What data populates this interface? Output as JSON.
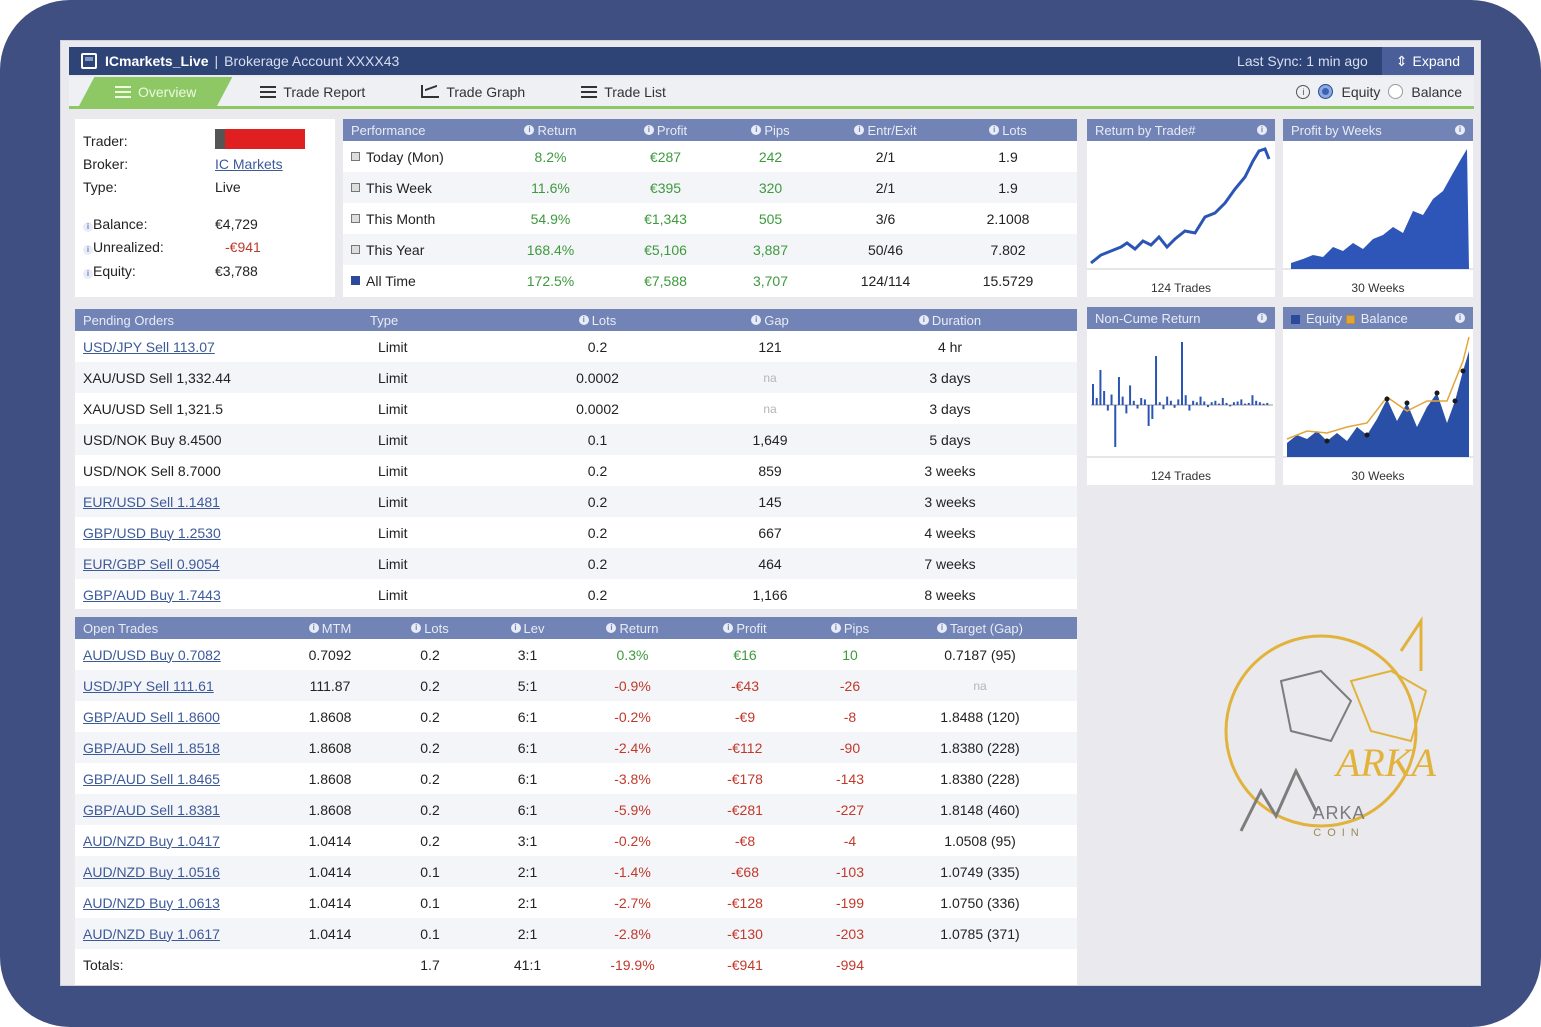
{
  "titlebar": {
    "account": "ICmarkets_Live",
    "separator": "|",
    "description": "Brokerage Account XXXX43",
    "last_sync": "Last Sync: 1 min ago",
    "expand_label": "Expand"
  },
  "tabs": {
    "overview": "Overview",
    "trade_report": "Trade Report",
    "trade_graph": "Trade Graph",
    "trade_list": "Trade List",
    "equity": "Equity",
    "balance": "Balance"
  },
  "trader": {
    "trader_label": "Trader:",
    "broker_label": "Broker:",
    "broker": "IC Markets",
    "type_label": "Type:",
    "type": "Live",
    "balance_label": "Balance:",
    "balance": "€4,729",
    "unrealized_label": "Unrealized:",
    "unrealized": "-€941",
    "equity_label": "Equity:",
    "equity": "€3,788"
  },
  "performance": {
    "headers": [
      "Performance",
      "Return",
      "Profit",
      "Pips",
      "Entr/Exit",
      "Lots"
    ],
    "rows": [
      [
        "Today (Mon)",
        "8.2%",
        "€287",
        "242",
        "2/1",
        "1.9"
      ],
      [
        "This Week",
        "11.6%",
        "€395",
        "320",
        "2/1",
        "1.9"
      ],
      [
        "This Month",
        "54.9%",
        "€1,343",
        "505",
        "3/6",
        "2.1008"
      ],
      [
        "This Year",
        "168.4%",
        "€5,106",
        "3,887",
        "50/46",
        "7.802"
      ],
      [
        "All Time",
        "172.5%",
        "€7,588",
        "3,707",
        "124/114",
        "15.5729"
      ]
    ]
  },
  "pending": {
    "headers": [
      "Pending Orders",
      "Type",
      "Lots",
      "Gap",
      "Duration"
    ],
    "rows": [
      [
        "USD/JPY Sell 113.07",
        "Limit",
        "0.2",
        "121",
        "4 hr"
      ],
      [
        "XAU/USD Sell 1,332.44",
        "Limit",
        "0.0002",
        "na",
        "3 days"
      ],
      [
        "XAU/USD Sell 1,321.5",
        "Limit",
        "0.0002",
        "na",
        "3 days"
      ],
      [
        "USD/NOK Buy 8.4500",
        "Limit",
        "0.1",
        "1,649",
        "5 days"
      ],
      [
        "USD/NOK Sell 8.7000",
        "Limit",
        "0.2",
        "859",
        "3 weeks"
      ],
      [
        "EUR/USD Sell 1.1481",
        "Limit",
        "0.2",
        "145",
        "3 weeks"
      ],
      [
        "GBP/USD Buy 1.2530",
        "Limit",
        "0.2",
        "667",
        "4 weeks"
      ],
      [
        "EUR/GBP Sell 0.9054",
        "Limit",
        "0.2",
        "464",
        "7 weeks"
      ],
      [
        "GBP/AUD Buy 1.7443",
        "Limit",
        "0.2",
        "1,166",
        "8 weeks"
      ]
    ]
  },
  "open": {
    "headers": [
      "Open Trades",
      "MTM",
      "Lots",
      "Lev",
      "Return",
      "Profit",
      "Pips",
      "Target (Gap)"
    ],
    "rows": [
      [
        "AUD/USD Buy 0.7082",
        "0.7092",
        "0.2",
        "3:1",
        "0.3%",
        "€16",
        "10",
        "0.7187 (95)"
      ],
      [
        "USD/JPY Sell 111.61",
        "111.87",
        "0.2",
        "5:1",
        "-0.9%",
        "-€43",
        "-26",
        "na"
      ],
      [
        "GBP/AUD Sell 1.8600",
        "1.8608",
        "0.2",
        "6:1",
        "-0.2%",
        "-€9",
        "-8",
        "1.8488 (120)"
      ],
      [
        "GBP/AUD Sell 1.8518",
        "1.8608",
        "0.2",
        "6:1",
        "-2.4%",
        "-€112",
        "-90",
        "1.8380 (228)"
      ],
      [
        "GBP/AUD Sell 1.8465",
        "1.8608",
        "0.2",
        "6:1",
        "-3.8%",
        "-€178",
        "-143",
        "1.8380 (228)"
      ],
      [
        "GBP/AUD Sell 1.8381",
        "1.8608",
        "0.2",
        "6:1",
        "-5.9%",
        "-€281",
        "-227",
        "1.8148 (460)"
      ],
      [
        "AUD/NZD Buy 1.0417",
        "1.0414",
        "0.2",
        "3:1",
        "-0.2%",
        "-€8",
        "-4",
        "1.0508 (95)"
      ],
      [
        "AUD/NZD Buy 1.0516",
        "1.0414",
        "0.1",
        "2:1",
        "-1.4%",
        "-€68",
        "-103",
        "1.0749 (335)"
      ],
      [
        "AUD/NZD Buy 1.0613",
        "1.0414",
        "0.1",
        "2:1",
        "-2.7%",
        "-€128",
        "-199",
        "1.0750 (336)"
      ],
      [
        "AUD/NZD Buy 1.0617",
        "1.0414",
        "0.1",
        "2:1",
        "-2.8%",
        "-€130",
        "-203",
        "1.0785 (371)"
      ]
    ],
    "totals": [
      "Totals:",
      "",
      "1.7",
      "41:1",
      "-19.9%",
      "-€941",
      "-994",
      ""
    ]
  },
  "charts": {
    "return_by_trade": {
      "title": "Return by Trade#",
      "caption": "124 Trades"
    },
    "profit_by_weeks": {
      "title": "Profit by Weeks",
      "caption": "30 Weeks"
    },
    "non_cume_return": {
      "title": "Non-Cume Return",
      "caption": "124 Trades"
    },
    "equity_balance": {
      "title_equity": "Equity",
      "title_balance": "Balance",
      "caption": "30 Weeks"
    }
  },
  "brand": {
    "name": "ARKA",
    "sub": "COIN",
    "mark": "ARKA"
  },
  "colors": {
    "header": "#7283b5",
    "titlebar": "#2e4477",
    "active_tab": "#8dc865",
    "positive": "#3d9a3d",
    "negative": "#c0392b",
    "link": "#3d5a99",
    "brand_gold": "#e2b33c"
  }
}
